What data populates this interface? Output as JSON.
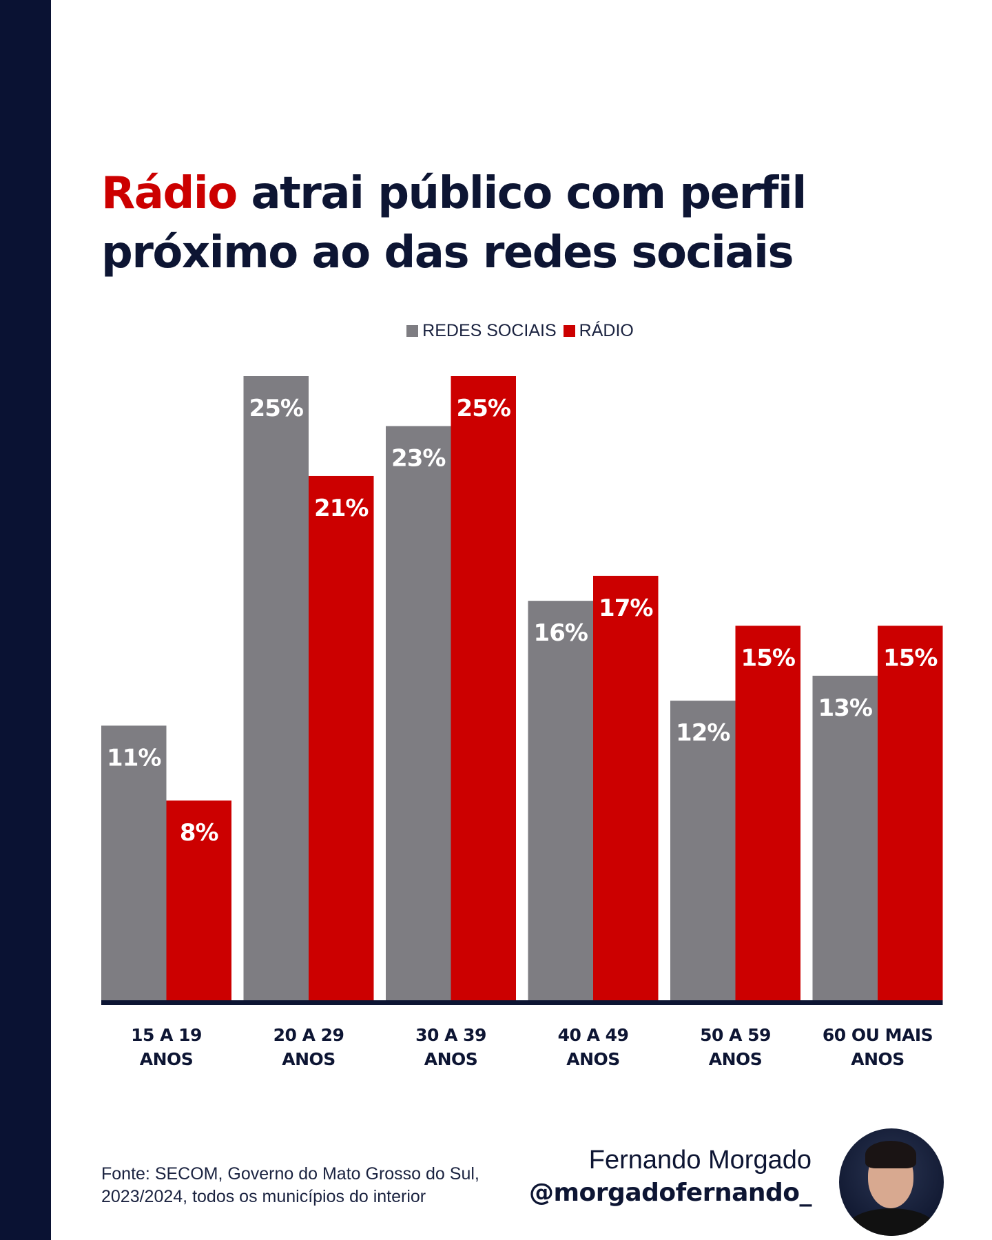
{
  "title": {
    "highlight": "Rádio",
    "rest_line1": " atrai público com perfil",
    "line2": "próximo ao das redes sociais"
  },
  "colors": {
    "navy": "#0a1233",
    "gray": "#7e7d82",
    "red": "#cc0000"
  },
  "chart_data": {
    "type": "bar",
    "title": "Rádio atrai público com perfil próximo ao das redes sociais",
    "legend_position": "top-center",
    "categories": [
      [
        "15 A 19",
        "ANOS"
      ],
      [
        "20 A 29",
        "ANOS"
      ],
      [
        "30 A 39",
        "ANOS"
      ],
      [
        "40 A 49",
        "ANOS"
      ],
      [
        "50 A 59",
        "ANOS"
      ],
      [
        "60 OU MAIS",
        "ANOS"
      ]
    ],
    "series": [
      {
        "name": "REDES SOCIAIS",
        "color": "#7e7d82",
        "values": [
          11,
          25,
          23,
          16,
          12,
          13
        ],
        "labels": [
          "11%",
          "25%",
          "23%",
          "16%",
          "12%",
          "13%"
        ]
      },
      {
        "name": "RÁDIO",
        "color": "#cc0000",
        "values": [
          8,
          21,
          25,
          17,
          15,
          15
        ],
        "labels": [
          "8%",
          "21%",
          "25%",
          "17%",
          "15%",
          "15%"
        ]
      }
    ],
    "ylim": [
      0,
      25
    ],
    "grid": false,
    "xlabel": "",
    "ylabel": ""
  },
  "footer": {
    "source_line1": "Fonte: SECOM, Governo do Mato Grosso do Sul,",
    "source_line2": "2023/2024, todos os municípios do interior",
    "author_name": "Fernando Morgado",
    "author_handle": "@morgadofernando_"
  }
}
